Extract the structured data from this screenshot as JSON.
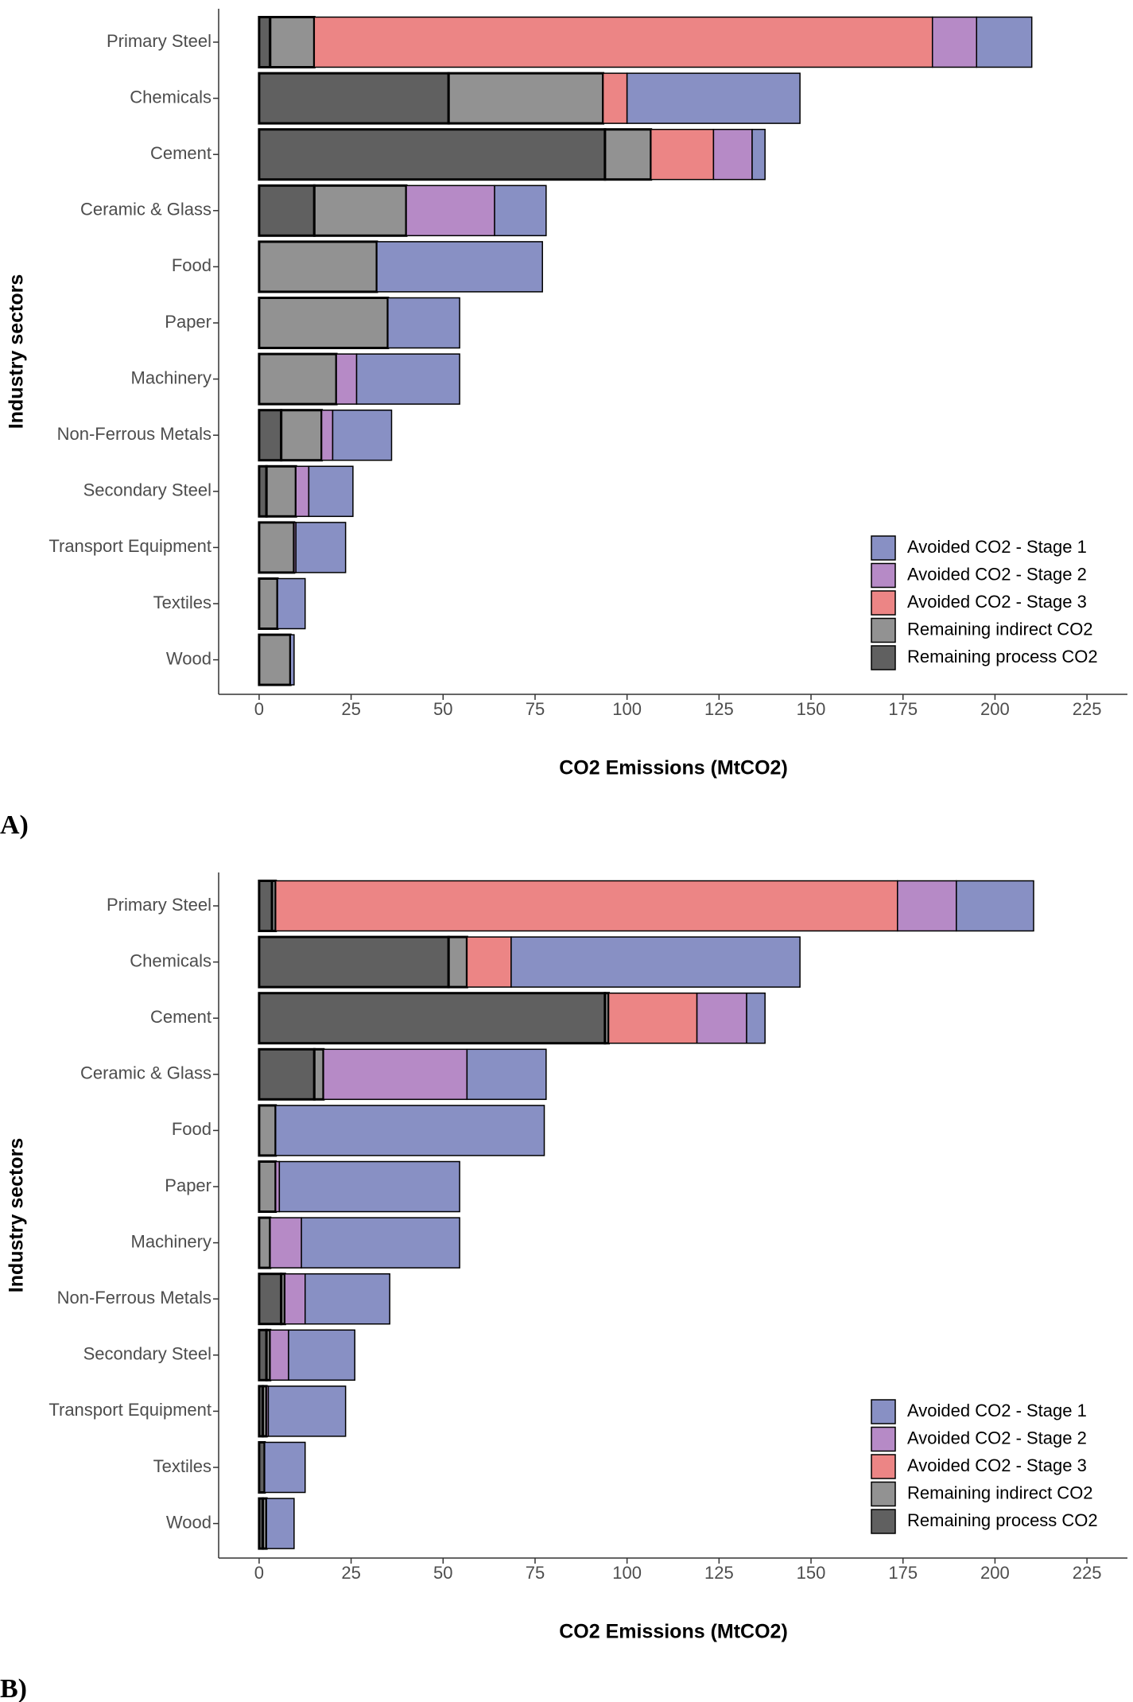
{
  "chart_data": [
    {
      "type": "bar",
      "orientation": "horizontal",
      "stacked": true,
      "panel_label": "A)",
      "x_label": "CO2 Emissions (MtCO2)",
      "y_label": "Industry sectors",
      "categories": [
        "Primary Steel",
        "Chemicals",
        "Cement",
        "Ceramic & Glass",
        "Food",
        "Paper",
        "Machinery",
        "Non-Ferrous Metals",
        "Secondary Steel",
        "Transport Equipment",
        "Textiles",
        "Wood"
      ],
      "xlim": [
        -11,
        236
      ],
      "xticks": [
        0,
        25,
        50,
        75,
        100,
        125,
        150,
        175,
        200,
        225
      ],
      "legend": "bottom-right",
      "series": [
        {
          "name": "Avoided CO2 - Stage 1",
          "color": "#8890c4",
          "values": [
            15,
            47,
            3.5,
            14,
            45,
            19.5,
            28,
            16,
            12,
            13.5,
            7.5,
            1
          ]
        },
        {
          "name": "Avoided CO2 - Stage 2",
          "color": "#b68ac6",
          "values": [
            12,
            0,
            10.5,
            24,
            0,
            0,
            5.5,
            3,
            3.5,
            0.5,
            0,
            0
          ]
        },
        {
          "name": "Avoided CO2 - Stage 3",
          "color": "#ec8585",
          "values": [
            168,
            6.5,
            17,
            0,
            0,
            0,
            0,
            0,
            0,
            0,
            0,
            0
          ]
        },
        {
          "name": "Remaining indirect CO2",
          "color": "#929292",
          "values": [
            12,
            42,
            12.5,
            25,
            32,
            35,
            21,
            11,
            8,
            9.5,
            5,
            8.5
          ]
        },
        {
          "name": "Remaining process CO2",
          "color": "#606060",
          "values": [
            3,
            51.5,
            94,
            15,
            0,
            0,
            0,
            6,
            2,
            0,
            0,
            0
          ]
        }
      ]
    },
    {
      "type": "bar",
      "orientation": "horizontal",
      "stacked": true,
      "panel_label": "B)",
      "x_label": "CO2 Emissions (MtCO2)",
      "y_label": "Industry sectors",
      "categories": [
        "Primary Steel",
        "Chemicals",
        "Cement",
        "Ceramic & Glass",
        "Food",
        "Paper",
        "Machinery",
        "Non-Ferrous Metals",
        "Secondary Steel",
        "Transport Equipment",
        "Textiles",
        "Wood"
      ],
      "xlim": [
        -11,
        236
      ],
      "xticks": [
        0,
        25,
        50,
        75,
        100,
        125,
        150,
        175,
        200,
        225
      ],
      "legend": "bottom-right",
      "series": [
        {
          "name": "Avoided CO2 - Stage 1",
          "color": "#8890c4",
          "values": [
            21,
            78.5,
            5,
            21.5,
            73,
            49,
            43,
            23,
            18,
            21,
            11,
            7.5
          ]
        },
        {
          "name": "Avoided CO2 - Stage 2",
          "color": "#b68ac6",
          "values": [
            16,
            0,
            13.5,
            39,
            0,
            1,
            8.5,
            5.5,
            5,
            0.5,
            0,
            0
          ]
        },
        {
          "name": "Avoided CO2 - Stage 3",
          "color": "#ec8585",
          "values": [
            169,
            12,
            24,
            0,
            0,
            0,
            0,
            0,
            0,
            0,
            0,
            0
          ]
        },
        {
          "name": "Remaining indirect CO2",
          "color": "#929292",
          "values": [
            1,
            5,
            1,
            2.5,
            4.5,
            4.5,
            3,
            1,
            1,
            1,
            0,
            1
          ]
        },
        {
          "name": "Remaining process CO2",
          "color": "#606060",
          "values": [
            3.5,
            51.5,
            94,
            15,
            0,
            0,
            0,
            6,
            2,
            1,
            1.5,
            1
          ]
        }
      ]
    }
  ]
}
